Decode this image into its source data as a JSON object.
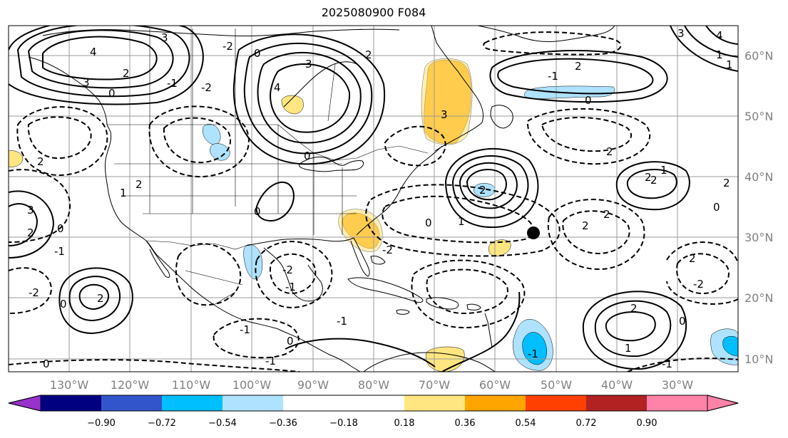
{
  "title": "2025080900 F084",
  "map": {
    "lon_labels": [
      "130°W",
      "120°W",
      "110°W",
      "100°W",
      "90°W",
      "80°W",
      "70°W",
      "60°W",
      "50°W",
      "40°W",
      "30°W"
    ],
    "lat_labels": [
      "60°N",
      "50°N",
      "40°N",
      "30°N",
      "20°N",
      "10°N"
    ],
    "contour_labels": [
      "4",
      "3",
      "2",
      "0",
      "-2",
      "4",
      "3",
      "-2",
      "3",
      "2",
      "-1",
      "0",
      "1",
      "2",
      "-2",
      "0",
      "1",
      "3",
      "2",
      "4",
      "3",
      "2",
      "0",
      "0",
      "2",
      "-2",
      "-1",
      "2",
      "1",
      "2",
      "0",
      "-2",
      "-1",
      "2",
      "2",
      "2",
      "1",
      "0",
      "-1",
      "-1",
      "-1",
      "2",
      "0",
      "2",
      "-2",
      "-1",
      "0",
      "-1",
      "2",
      "1",
      "0",
      "2",
      "2",
      "3",
      "-1",
      "0",
      "0",
      "1"
    ],
    "marker": {
      "lon": -54.5,
      "lat": 30.5
    }
  },
  "colorbar": {
    "ticks": [
      "−0.90",
      "−0.72",
      "−0.54",
      "−0.36",
      "−0.18",
      "0.18",
      "0.36",
      "0.54",
      "0.72",
      "0.90"
    ],
    "colors": [
      "#9932cc",
      "#000080",
      "#3355cc",
      "#00bfff",
      "#aee2ff",
      "#ffffff",
      "#ffe680",
      "#ffa500",
      "#ff4000",
      "#b22222",
      "#ff82a9"
    ]
  }
}
